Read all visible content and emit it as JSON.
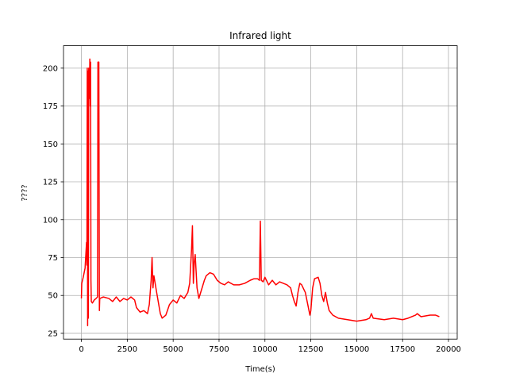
{
  "chart_data": {
    "type": "line",
    "title": "Infrared light",
    "xlabel": "Time(s)",
    "ylabel": "????",
    "x": [
      0,
      20,
      100,
      200,
      280,
      300,
      320,
      340,
      360,
      380,
      400,
      430,
      460,
      480,
      500,
      520,
      540,
      600,
      700,
      800,
      880,
      900,
      950,
      980,
      1000,
      1200,
      1500,
      1700,
      1900,
      2100,
      2300,
      2500,
      2700,
      2900,
      3000,
      3200,
      3400,
      3600,
      3700,
      3800,
      3850,
      3900,
      3950,
      4100,
      4200,
      4300,
      4400,
      4600,
      4800,
      5000,
      5200,
      5400,
      5600,
      5800,
      5900,
      6000,
      6050,
      6100,
      6150,
      6200,
      6300,
      6400,
      6500,
      6700,
      6800,
      7000,
      7200,
      7400,
      7600,
      7800,
      8000,
      8300,
      8600,
      8900,
      9200,
      9400,
      9600,
      9700,
      9750,
      9800,
      9900,
      10000,
      10200,
      10400,
      10600,
      10800,
      11000,
      11200,
      11400,
      11500,
      11600,
      11700,
      11800,
      11900,
      12000,
      12200,
      12400,
      12450,
      12500,
      12600,
      12700,
      12900,
      13000,
      13100,
      13200,
      13300,
      13400,
      13500,
      13700,
      14000,
      14500,
      15000,
      15500,
      15700,
      15800,
      15900,
      16500,
      17000,
      17500,
      17800,
      18000,
      18200,
      18300,
      18500,
      19000,
      19300,
      19500
    ],
    "series": [
      {
        "color": "#ff0000",
        "values": [
          48,
          58,
          62,
          68,
          85,
          70,
          200,
          30,
          198,
          35,
          200,
          180,
          206,
          175,
          204,
          60,
          46,
          45,
          47,
          48,
          49,
          204,
          204,
          40,
          48,
          49,
          48,
          46,
          49,
          46,
          48,
          47,
          49,
          47,
          42,
          39,
          40,
          38,
          44,
          60,
          75,
          55,
          63,
          52,
          45,
          38,
          35,
          37,
          44,
          47,
          45,
          50,
          48,
          52,
          58,
          80,
          96,
          58,
          72,
          77,
          55,
          48,
          52,
          60,
          63,
          65,
          64,
          60,
          58,
          57,
          59,
          57,
          57,
          58,
          60,
          61,
          61,
          60,
          99,
          60,
          59,
          62,
          57,
          60,
          57,
          59,
          58,
          57,
          55,
          50,
          46,
          43,
          52,
          58,
          57,
          52,
          40,
          37,
          40,
          55,
          61,
          62,
          58,
          50,
          46,
          52,
          45,
          40,
          37,
          35,
          34,
          33,
          34,
          35,
          38,
          35,
          34,
          35,
          34,
          35,
          36,
          37,
          38,
          36,
          37,
          37,
          36
        ]
      }
    ],
    "xlim": [
      -975,
      20475
    ],
    "ylim": [
      21.2,
      214.8
    ],
    "xticks": [
      0,
      2500,
      5000,
      7500,
      10000,
      12500,
      15000,
      17500,
      20000
    ],
    "yticks": [
      25,
      50,
      75,
      100,
      125,
      150,
      175,
      200
    ],
    "grid": true
  }
}
